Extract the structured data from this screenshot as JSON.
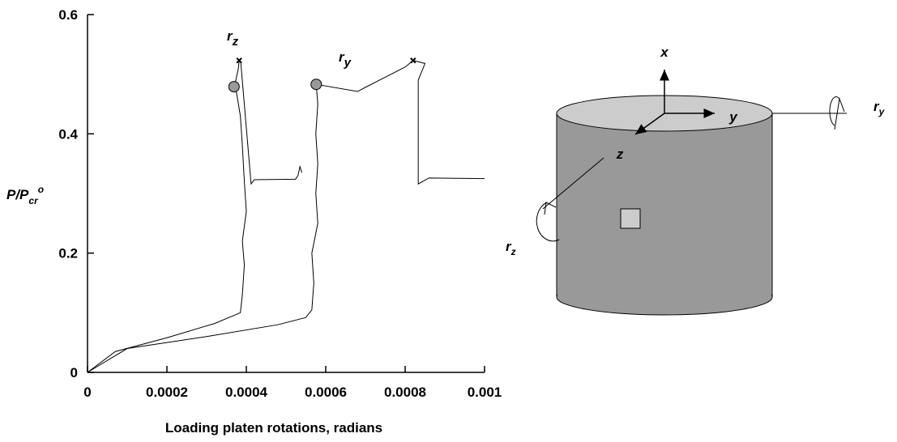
{
  "chart_data": {
    "type": "line",
    "x_label": "Loading platen rotations, radians",
    "y_label": {
      "text": "P/P",
      "subscript": "cr",
      "superscript": "o"
    },
    "xlim": [
      0,
      0.001
    ],
    "xticks": [
      0,
      0.0002,
      0.0004,
      0.0006,
      0.0008,
      0.001
    ],
    "ylim": [
      0,
      0.6
    ],
    "yticks": [
      0,
      0.2,
      0.4,
      0.6
    ],
    "grid": false,
    "series": [
      {
        "name": "r",
        "name_subscript": "z",
        "color": "#000000",
        "x": [
          0,
          7e-05,
          0.0002,
          0.00032,
          0.000385,
          0.00039,
          0.000395,
          0.00039,
          0.0004,
          0.000395,
          0.00039,
          0.000385,
          0.000375,
          0.00037,
          0.00038,
          0.000382,
          0.000386,
          0.000412,
          0.00042,
          0.000524,
          0.00053,
          0.000535,
          0.00054
        ],
        "values": [
          0,
          0.035,
          0.058,
          0.082,
          0.1,
          0.13,
          0.18,
          0.22,
          0.27,
          0.32,
          0.38,
          0.43,
          0.47,
          0.479,
          0.51,
          0.523,
          0.52,
          0.316,
          0.323,
          0.324,
          0.33,
          0.345,
          0.335
        ],
        "markers": [
          {
            "x": 0.000369,
            "y": 0.479,
            "symbol": "circle"
          },
          {
            "x": 0.000382,
            "y": 0.523,
            "symbol": "x"
          }
        ]
      },
      {
        "name": "r",
        "name_subscript": "y",
        "color": "#000000",
        "x": [
          0,
          0.0001,
          0.0003,
          0.00048,
          0.00055,
          0.000565,
          0.00057,
          0.000565,
          0.00058,
          0.000575,
          0.00058,
          0.000575,
          0.00058,
          0.000576,
          0.00068,
          0.0007,
          0.00075,
          0.0008,
          0.00082,
          0.00085,
          0.000833,
          0.000833,
          0.00086,
          0.001
        ],
        "values": [
          0,
          0.04,
          0.06,
          0.08,
          0.092,
          0.105,
          0.15,
          0.2,
          0.25,
          0.3,
          0.35,
          0.4,
          0.45,
          0.483,
          0.471,
          0.478,
          0.495,
          0.512,
          0.523,
          0.518,
          0.49,
          0.316,
          0.326,
          0.325
        ],
        "markers": [
          {
            "x": 0.000576,
            "y": 0.483,
            "symbol": "circle"
          },
          {
            "x": 0.00082,
            "y": 0.523,
            "symbol": "x"
          }
        ]
      }
    ]
  },
  "diagram": {
    "axes": [
      "x",
      "y",
      "z"
    ],
    "rotations": [
      {
        "label": "r",
        "subscript": "y"
      },
      {
        "label": "r",
        "subscript": "z"
      }
    ]
  }
}
